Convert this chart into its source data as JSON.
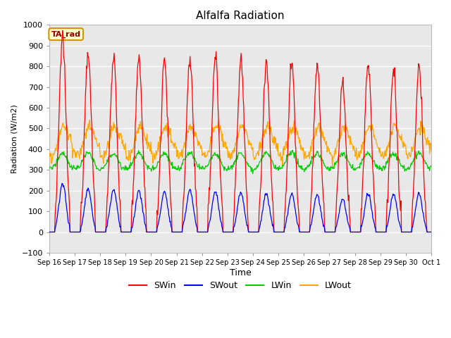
{
  "title": "Alfalfa Radiation",
  "xlabel": "Time",
  "ylabel": "Radiation (W/m2)",
  "ylim": [
    -100,
    1000
  ],
  "background_color": "#e8e8e8",
  "grid_color": "white",
  "annotation_text": "TA_rad",
  "annotation_bg": "#ffffcc",
  "annotation_border": "#cc9900",
  "legend_entries": [
    "SWin",
    "SWout",
    "LWin",
    "LWout"
  ],
  "legend_colors": [
    "red",
    "blue",
    "green",
    "orange"
  ],
  "tick_labels": [
    "Sep 16",
    "Sep 17",
    "Sep 18",
    "Sep 19",
    "Sep 20",
    "Sep 21",
    "Sep 22",
    "Sep 23",
    "Sep 24",
    "Sep 25",
    "Sep 26",
    "Sep 27",
    "Sep 28",
    "Sep 29",
    "Sep 30",
    "Oct 1"
  ],
  "sw_peaks": [
    940,
    880,
    855,
    845,
    840,
    840,
    855,
    835,
    830,
    825,
    805,
    715,
    815,
    785,
    795
  ],
  "sw_peaks_out": [
    235,
    210,
    205,
    200,
    195,
    205,
    195,
    190,
    185,
    185,
    180,
    160,
    185,
    185,
    185
  ]
}
